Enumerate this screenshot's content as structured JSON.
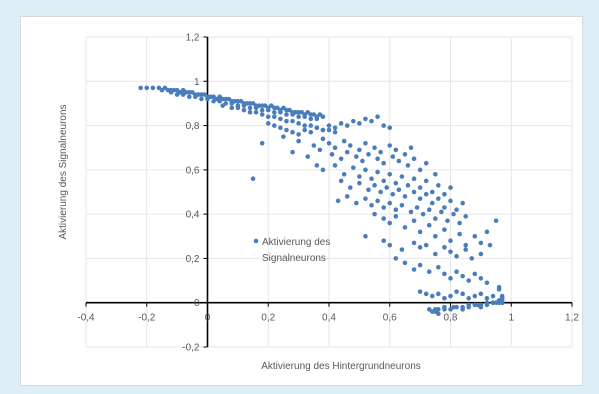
{
  "chart_data": {
    "type": "scatter",
    "title": "",
    "xlabel": "Aktivierung des Hintergrundneurons",
    "ylabel": "Aktivierung des Signalneurons",
    "xlim": [
      -0.4,
      1.2
    ],
    "ylim": [
      -0.2,
      1.2
    ],
    "x_ticks": [
      -0.4,
      -0.2,
      0,
      0.2,
      0.4,
      0.6,
      0.8,
      1,
      1.2
    ],
    "y_ticks": [
      -0.2,
      0,
      0.2,
      0.4,
      0.6,
      0.8,
      1,
      1.2
    ],
    "x_tick_labels": [
      "-0,4",
      "-0,2",
      "0",
      "0,2",
      "0,4",
      "0,6",
      "0,8",
      "1",
      "1,2"
    ],
    "y_tick_labels": [
      "-0,2",
      "0",
      "0,2",
      "0,4",
      "0,6",
      "0,8",
      "1",
      "1,2"
    ],
    "grid": true,
    "legend_position": "inside-center-left",
    "marker_color": "#4a7ebb",
    "series": [
      {
        "name": "Aktivierung des Signalneurons",
        "x": [
          -0.22,
          -0.2,
          -0.18,
          -0.16,
          -0.15,
          -0.14,
          -0.13,
          -0.12,
          -0.11,
          -0.1,
          -0.09,
          -0.08,
          -0.07,
          -0.06,
          -0.05,
          -0.04,
          -0.03,
          -0.02,
          -0.01,
          0.0,
          0.01,
          0.02,
          0.03,
          0.04,
          0.05,
          0.06,
          0.07,
          0.08,
          0.09,
          0.1,
          0.11,
          0.12,
          0.13,
          0.14,
          0.15,
          0.16,
          0.17,
          0.18,
          0.19,
          0.2,
          0.21,
          0.22,
          0.23,
          0.24,
          0.25,
          0.26,
          0.27,
          0.28,
          0.29,
          0.3,
          0.31,
          0.32,
          0.33,
          0.34,
          0.35,
          0.36,
          0.37,
          0.38,
          -0.12,
          -0.1,
          -0.08,
          -0.06,
          -0.04,
          -0.02,
          0.0,
          0.02,
          0.04,
          0.06,
          0.08,
          0.1,
          0.12,
          0.14,
          0.16,
          0.18,
          0.2,
          0.22,
          0.24,
          0.26,
          0.28,
          0.3,
          0.32,
          0.34,
          0.36,
          0.05,
          0.08,
          0.1,
          0.12,
          0.14,
          0.16,
          0.18,
          0.2,
          0.22,
          0.24,
          0.26,
          0.28,
          0.3,
          0.32,
          0.34,
          0.36,
          0.38,
          0.4,
          0.42,
          0.2,
          0.22,
          0.24,
          0.26,
          0.28,
          0.3,
          0.32,
          0.34,
          0.36,
          0.38,
          0.4,
          0.42,
          0.44,
          0.46,
          0.48,
          0.5,
          0.52,
          0.54,
          0.56,
          0.58,
          0.6,
          0.18,
          0.25,
          0.3,
          0.35,
          0.38,
          0.4,
          0.42,
          0.45,
          0.47,
          0.5,
          0.52,
          0.55,
          0.57,
          0.6,
          0.62,
          0.65,
          0.67,
          0.28,
          0.33,
          0.37,
          0.41,
          0.44,
          0.46,
          0.49,
          0.51,
          0.53,
          0.56,
          0.58,
          0.61,
          0.63,
          0.66,
          0.68,
          0.7,
          0.72,
          0.75,
          0.38,
          0.42,
          0.45,
          0.48,
          0.5,
          0.52,
          0.54,
          0.56,
          0.58,
          0.6,
          0.62,
          0.64,
          0.66,
          0.68,
          0.7,
          0.72,
          0.74,
          0.76,
          0.78,
          0.8,
          0.44,
          0.47,
          0.5,
          0.53,
          0.55,
          0.57,
          0.59,
          0.61,
          0.63,
          0.65,
          0.68,
          0.7,
          0.72,
          0.74,
          0.76,
          0.78,
          0.8,
          0.82,
          0.84,
          0.43,
          0.46,
          0.49,
          0.52,
          0.54,
          0.56,
          0.58,
          0.6,
          0.62,
          0.64,
          0.67,
          0.69,
          0.71,
          0.73,
          0.75,
          0.77,
          0.79,
          0.81,
          0.83,
          0.85,
          0.55,
          0.58,
          0.6,
          0.62,
          0.65,
          0.68,
          0.7,
          0.73,
          0.75,
          0.78,
          0.8,
          0.83,
          0.85,
          0.88,
          0.9,
          0.92,
          0.15,
          0.36,
          0.52,
          0.58,
          0.6,
          0.64,
          0.68,
          0.7,
          0.72,
          0.75,
          0.78,
          0.8,
          0.82,
          0.85,
          0.87,
          0.9,
          0.93,
          0.95,
          0.62,
          0.65,
          0.68,
          0.7,
          0.73,
          0.76,
          0.78,
          0.8,
          0.82,
          0.84,
          0.86,
          0.88,
          0.9,
          0.92,
          0.7,
          0.72,
          0.74,
          0.76,
          0.78,
          0.8,
          0.82,
          0.84,
          0.86,
          0.88,
          0.9,
          0.92,
          0.94,
          0.96,
          0.73,
          0.75,
          0.76,
          0.78,
          0.8,
          0.82,
          0.84,
          0.86,
          0.88,
          0.9,
          0.92,
          0.94,
          0.95,
          0.96,
          0.97,
          0.97,
          0.97,
          0.96,
          0.97,
          0.74,
          0.75,
          0.76,
          0.78,
          0.81,
          0.84,
          0.86,
          0.89,
          0.9,
          0.92,
          0.94,
          0.96,
          0.97,
          0.97,
          0.96
        ],
        "y": [
          0.97,
          0.97,
          0.97,
          0.97,
          0.96,
          0.97,
          0.96,
          0.96,
          0.96,
          0.96,
          0.95,
          0.96,
          0.95,
          0.95,
          0.95,
          0.94,
          0.94,
          0.94,
          0.94,
          0.93,
          0.93,
          0.93,
          0.92,
          0.93,
          0.92,
          0.92,
          0.92,
          0.91,
          0.91,
          0.91,
          0.91,
          0.9,
          0.9,
          0.9,
          0.9,
          0.89,
          0.89,
          0.89,
          0.89,
          0.88,
          0.89,
          0.88,
          0.88,
          0.87,
          0.88,
          0.87,
          0.87,
          0.86,
          0.86,
          0.86,
          0.86,
          0.85,
          0.86,
          0.85,
          0.85,
          0.84,
          0.85,
          0.84,
          0.95,
          0.94,
          0.94,
          0.93,
          0.93,
          0.92,
          0.92,
          0.91,
          0.91,
          0.9,
          0.9,
          0.89,
          0.89,
          0.88,
          0.88,
          0.87,
          0.87,
          0.86,
          0.86,
          0.85,
          0.85,
          0.84,
          0.84,
          0.83,
          0.83,
          0.89,
          0.88,
          0.88,
          0.87,
          0.86,
          0.86,
          0.85,
          0.84,
          0.84,
          0.83,
          0.82,
          0.82,
          0.81,
          0.8,
          0.8,
          0.79,
          0.78,
          0.78,
          0.77,
          0.81,
          0.8,
          0.79,
          0.78,
          0.77,
          0.76,
          0.78,
          0.77,
          0.79,
          0.78,
          0.8,
          0.79,
          0.81,
          0.8,
          0.82,
          0.81,
          0.83,
          0.82,
          0.84,
          0.8,
          0.79,
          0.72,
          0.75,
          0.73,
          0.71,
          0.74,
          0.72,
          0.7,
          0.73,
          0.71,
          0.69,
          0.72,
          0.7,
          0.68,
          0.71,
          0.69,
          0.67,
          0.7,
          0.68,
          0.66,
          0.69,
          0.67,
          0.65,
          0.68,
          0.66,
          0.64,
          0.67,
          0.65,
          0.63,
          0.66,
          0.64,
          0.62,
          0.65,
          0.6,
          0.63,
          0.58,
          0.6,
          0.62,
          0.58,
          0.61,
          0.57,
          0.6,
          0.56,
          0.59,
          0.55,
          0.58,
          0.54,
          0.57,
          0.53,
          0.56,
          0.52,
          0.55,
          0.5,
          0.53,
          0.49,
          0.52,
          0.55,
          0.52,
          0.54,
          0.51,
          0.53,
          0.5,
          0.52,
          0.49,
          0.51,
          0.48,
          0.5,
          0.47,
          0.49,
          0.45,
          0.47,
          0.43,
          0.46,
          0.42,
          0.45,
          0.46,
          0.48,
          0.45,
          0.47,
          0.44,
          0.46,
          0.43,
          0.45,
          0.42,
          0.44,
          0.41,
          0.43,
          0.4,
          0.42,
          0.38,
          0.41,
          0.37,
          0.4,
          0.36,
          0.39,
          0.4,
          0.38,
          0.36,
          0.39,
          0.34,
          0.37,
          0.32,
          0.35,
          0.3,
          0.33,
          0.28,
          0.31,
          0.26,
          0.3,
          0.27,
          0.32,
          0.56,
          0.62,
          0.3,
          0.28,
          0.26,
          0.24,
          0.27,
          0.25,
          0.26,
          0.22,
          0.25,
          0.23,
          0.21,
          0.24,
          0.2,
          0.22,
          0.26,
          0.37,
          0.2,
          0.18,
          0.15,
          0.17,
          0.14,
          0.16,
          0.13,
          0.11,
          0.14,
          0.12,
          0.1,
          0.13,
          0.11,
          0.09,
          0.05,
          0.04,
          0.03,
          0.04,
          0.02,
          0.03,
          0.05,
          0.04,
          0.02,
          0.03,
          0.04,
          0.02,
          0.03,
          0.01,
          -0.03,
          -0.04,
          -0.03,
          -0.03,
          -0.03,
          -0.02,
          -0.02,
          -0.01,
          -0.01,
          -0.01,
          0.0,
          0.0,
          0.0,
          0.0,
          0.0,
          0.01,
          0.02,
          0.07,
          0.03,
          -0.04,
          -0.03,
          -0.05,
          -0.02,
          -0.02,
          -0.03,
          -0.02,
          -0.01,
          -0.02,
          -0.01,
          0.0,
          0.01,
          0.0,
          0.02,
          0.06
        ]
      }
    ]
  }
}
